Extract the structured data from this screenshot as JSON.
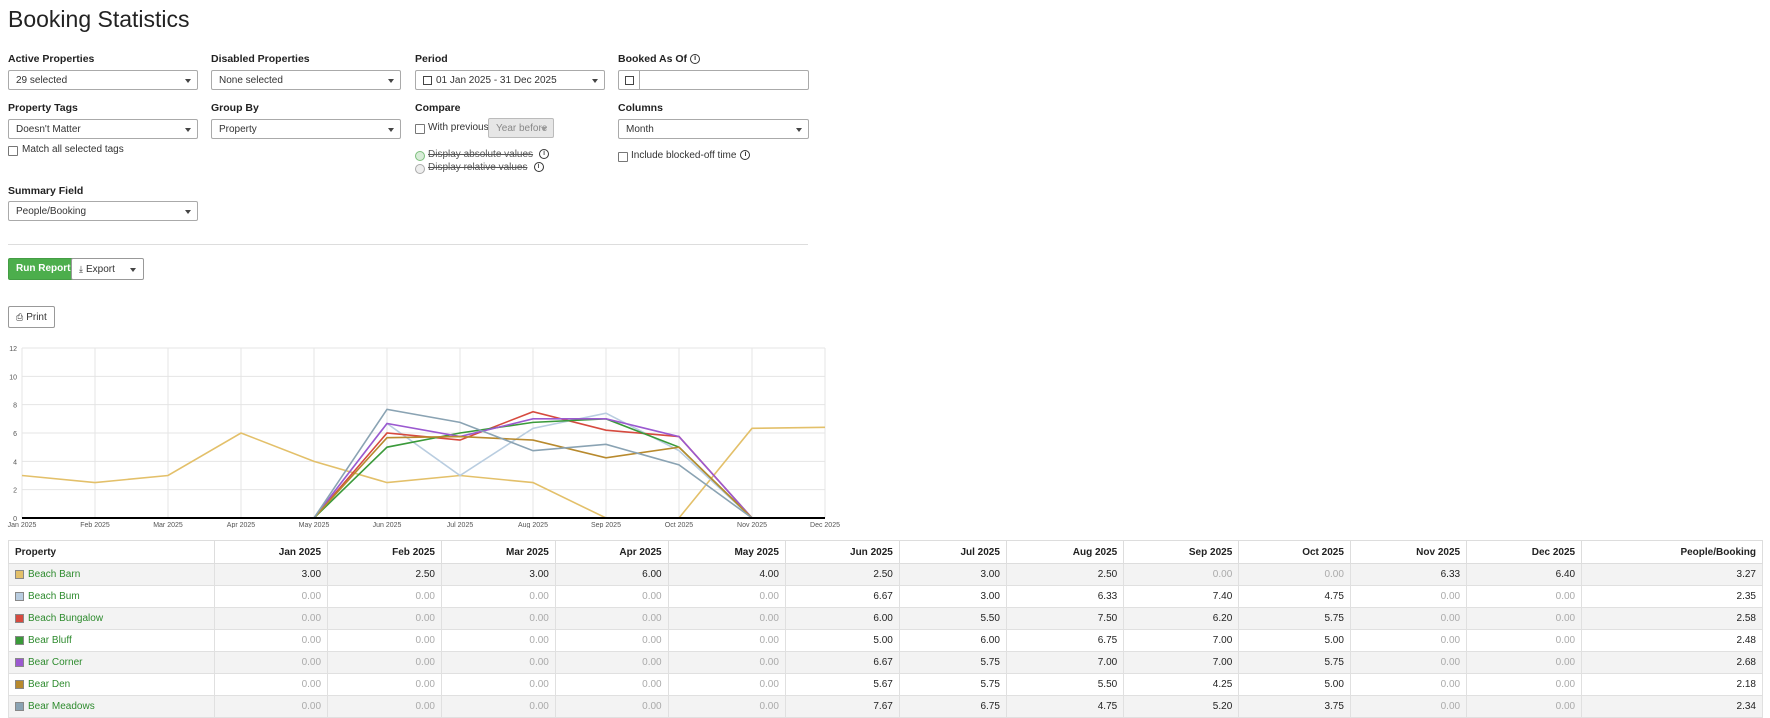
{
  "page": {
    "title": "Booking Statistics"
  },
  "filters": {
    "active_properties": {
      "label": "Active Properties",
      "value": "29 selected"
    },
    "disabled_properties": {
      "label": "Disabled Properties",
      "value": "None selected"
    },
    "period": {
      "label": "Period",
      "value": "01 Jan 2025 - 31 Dec 2025"
    },
    "booked_as_of": {
      "label": "Booked As Of",
      "value": ""
    },
    "property_tags": {
      "label": "Property Tags",
      "value": "Doesn't Matter",
      "match_all": "Match all selected tags"
    },
    "group_by": {
      "label": "Group By",
      "value": "Property"
    },
    "compare": {
      "label": "Compare",
      "with_previous": "With previous",
      "year_before": "Year before",
      "absolute": "Display absolute values",
      "relative": "Display relative values"
    },
    "columns": {
      "label": "Columns",
      "value": "Month",
      "blocked": "Include blocked-off time"
    },
    "summary_field": {
      "label": "Summary Field",
      "value": "People/Booking"
    }
  },
  "actions": {
    "run": "Run Report",
    "export": "Export",
    "print": "Print"
  },
  "chart_data": {
    "type": "line",
    "x": [
      "Jan 2025",
      "Feb 2025",
      "Mar 2025",
      "Apr 2025",
      "May 2025",
      "Jun 2025",
      "Jul 2025",
      "Aug 2025",
      "Sep 2025",
      "Oct 2025",
      "Nov 2025",
      "Dec 2025"
    ],
    "ylim": [
      0,
      12
    ],
    "yticks": [
      "0",
      "2",
      "4",
      "6",
      "8",
      "10",
      "12"
    ],
    "grid": true,
    "series": [
      {
        "name": "Beach Barn",
        "color": "#e3c06a",
        "values": [
          3.0,
          2.5,
          3.0,
          6.0,
          4.0,
          2.5,
          3.0,
          2.5,
          0,
          0,
          6.33,
          6.4
        ]
      },
      {
        "name": "Beach Bum",
        "color": "#b9cde0",
        "values": [
          0,
          0,
          0,
          0,
          0,
          6.67,
          3.0,
          6.33,
          7.4,
          4.75,
          0,
          0
        ]
      },
      {
        "name": "Beach Bungalow",
        "color": "#d64a3f",
        "values": [
          0,
          0,
          0,
          0,
          0,
          6.0,
          5.5,
          7.5,
          6.2,
          5.75,
          0,
          0
        ]
      },
      {
        "name": "Bear Bluff",
        "color": "#3a9a3a",
        "values": [
          0,
          0,
          0,
          0,
          0,
          5.0,
          6.0,
          6.75,
          7.0,
          5.0,
          0,
          0
        ]
      },
      {
        "name": "Bear Corner",
        "color": "#9b59d0",
        "values": [
          0,
          0,
          0,
          0,
          0,
          6.67,
          5.75,
          7.0,
          7.0,
          5.75,
          0,
          0
        ]
      },
      {
        "name": "Bear Den",
        "color": "#b88a2e",
        "values": [
          0,
          0,
          0,
          0,
          0,
          5.67,
          5.75,
          5.5,
          4.25,
          5.0,
          0,
          0
        ]
      },
      {
        "name": "Bear Meadows",
        "color": "#8aa3b3",
        "values": [
          0,
          0,
          0,
          0,
          0,
          7.67,
          6.75,
          4.75,
          5.2,
          3.75,
          0,
          0
        ]
      }
    ]
  },
  "table": {
    "headers": [
      "Property",
      "Jan 2025",
      "Feb 2025",
      "Mar 2025",
      "Apr 2025",
      "May 2025",
      "Jun 2025",
      "Jul 2025",
      "Aug 2025",
      "Sep 2025",
      "Oct 2025",
      "Nov 2025",
      "Dec 2025",
      "People/Booking"
    ],
    "rows": [
      {
        "name": "Beach Barn",
        "color": "#e3c06a",
        "cells": [
          "3.00",
          "2.50",
          "3.00",
          "6.00",
          "4.00",
          "2.50",
          "3.00",
          "2.50",
          "0.00",
          "0.00",
          "6.33",
          "6.40",
          "3.27"
        ]
      },
      {
        "name": "Beach Bum",
        "color": "#b9cde0",
        "cells": [
          "0.00",
          "0.00",
          "0.00",
          "0.00",
          "0.00",
          "6.67",
          "3.00",
          "6.33",
          "7.40",
          "4.75",
          "0.00",
          "0.00",
          "2.35"
        ]
      },
      {
        "name": "Beach Bungalow",
        "color": "#d64a3f",
        "cells": [
          "0.00",
          "0.00",
          "0.00",
          "0.00",
          "0.00",
          "6.00",
          "5.50",
          "7.50",
          "6.20",
          "5.75",
          "0.00",
          "0.00",
          "2.58"
        ]
      },
      {
        "name": "Bear Bluff",
        "color": "#3a9a3a",
        "cells": [
          "0.00",
          "0.00",
          "0.00",
          "0.00",
          "0.00",
          "5.00",
          "6.00",
          "6.75",
          "7.00",
          "5.00",
          "0.00",
          "0.00",
          "2.48"
        ]
      },
      {
        "name": "Bear Corner",
        "color": "#9b59d0",
        "cells": [
          "0.00",
          "0.00",
          "0.00",
          "0.00",
          "0.00",
          "6.67",
          "5.75",
          "7.00",
          "7.00",
          "5.75",
          "0.00",
          "0.00",
          "2.68"
        ]
      },
      {
        "name": "Bear Den",
        "color": "#b88a2e",
        "cells": [
          "0.00",
          "0.00",
          "0.00",
          "0.00",
          "0.00",
          "5.67",
          "5.75",
          "5.50",
          "4.25",
          "5.00",
          "0.00",
          "0.00",
          "2.18"
        ]
      },
      {
        "name": "Bear Meadows",
        "color": "#8aa3b3",
        "cells": [
          "0.00",
          "0.00",
          "0.00",
          "0.00",
          "0.00",
          "7.67",
          "6.75",
          "4.75",
          "5.20",
          "3.75",
          "0.00",
          "0.00",
          "2.34"
        ]
      }
    ]
  }
}
